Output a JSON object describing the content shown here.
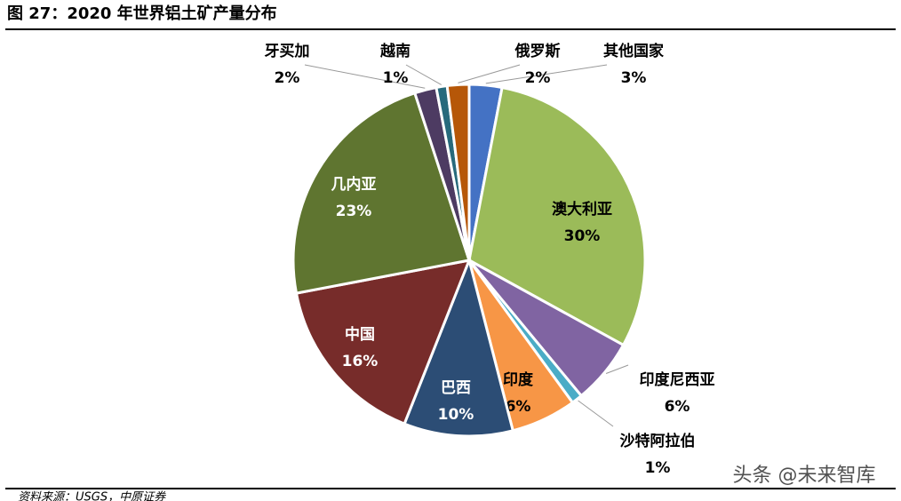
{
  "chart_data": {
    "type": "pie",
    "title": "图 27：2020 年世界铝土矿产量分布",
    "categories": [
      "其他国家",
      "澳大利亚",
      "印度尼西亚",
      "沙特阿拉伯",
      "印度",
      "巴西",
      "中国",
      "几内亚",
      "牙买加",
      "越南",
      "俄罗斯"
    ],
    "values": [
      3,
      30,
      6,
      1,
      6,
      10,
      16,
      23,
      2,
      1,
      2
    ],
    "value_labels": [
      "3%",
      "30%",
      "6%",
      "1%",
      "6%",
      "10%",
      "16%",
      "23%",
      "2%",
      "1%",
      "2%"
    ],
    "colors": [
      "#4472c4",
      "#9bbb59",
      "#8064a2",
      "#4bacc6",
      "#f79646",
      "#2c4d75",
      "#772c2a",
      "#5f7530",
      "#4d3b62",
      "#276a7c",
      "#b65708"
    ],
    "source": "资料来源：USGS，中原证券",
    "watermark": "头条 @未来智库"
  }
}
